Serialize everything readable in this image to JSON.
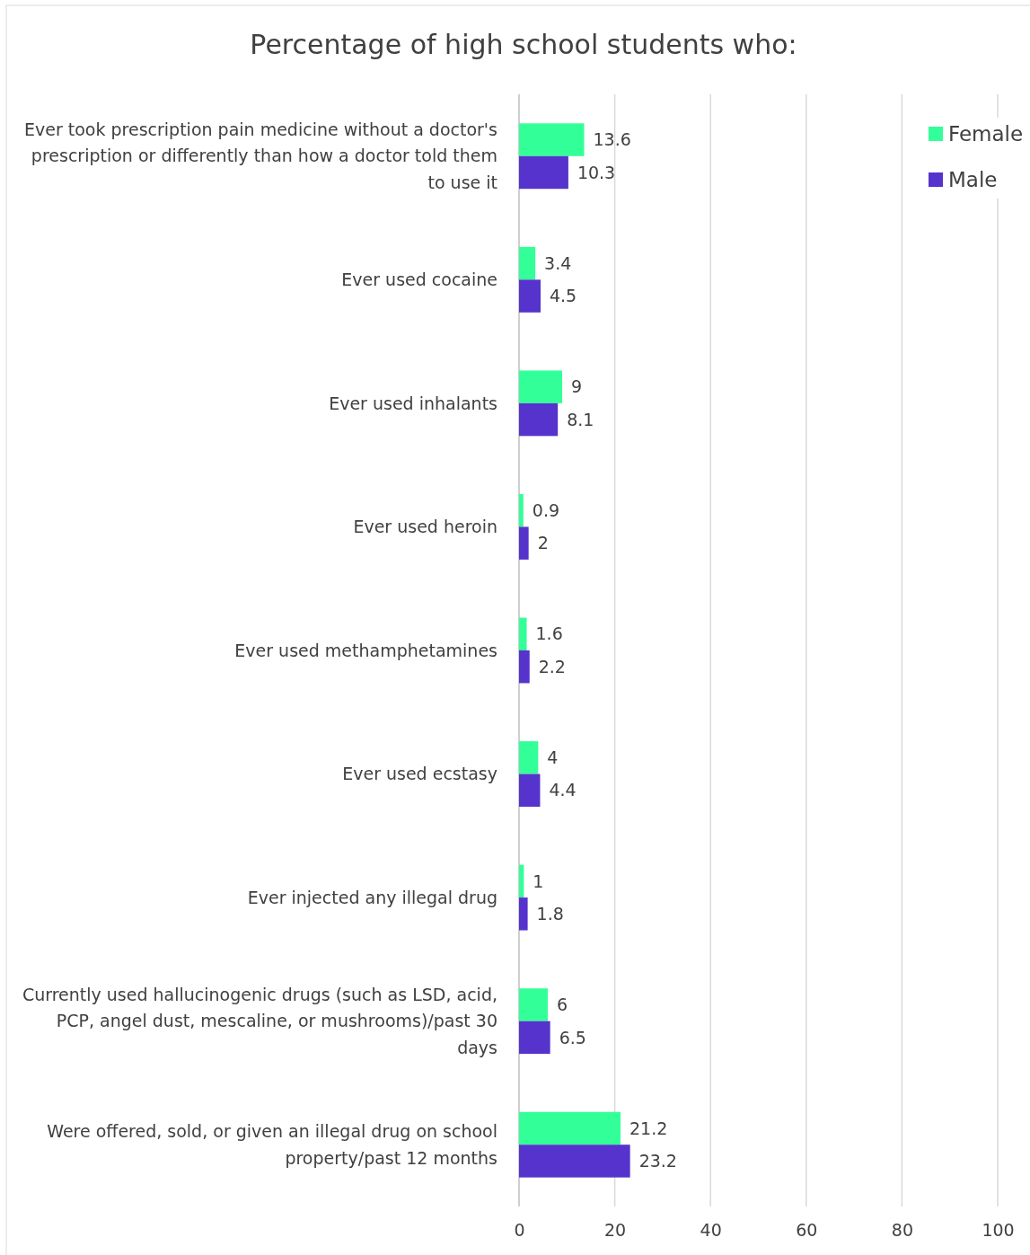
{
  "chart_data": {
    "type": "bar",
    "orientation": "horizontal",
    "title": "Percentage of high school students who:",
    "categories": [
      "Ever took prescription pain medicine without a doctor's prescription or differently than how a doctor told them to use it",
      "Ever used cocaine",
      "Ever used inhalants",
      "Ever used heroin",
      "Ever used methamphetamines",
      "Ever used ecstasy",
      "Ever injected any illegal drug",
      "Currently used hallucinogenic drugs (such as LSD, acid, PCP, angel dust, mescaline, or mushrooms)/past 30 days",
      "Were offered, sold, or given an illegal drug on school property/past 12 months"
    ],
    "series": [
      {
        "name": "Female",
        "color": "#33ff99",
        "values": [
          13.6,
          3.4,
          9,
          0.9,
          1.6,
          4,
          1,
          6,
          21.2
        ]
      },
      {
        "name": "Male",
        "color": "#5533cc",
        "values": [
          10.3,
          4.5,
          8.1,
          2,
          2.2,
          4.4,
          1.8,
          6.5,
          23.2
        ]
      }
    ],
    "xlim": [
      0,
      100
    ],
    "xticks": [
      0,
      20,
      40,
      60,
      80,
      100
    ],
    "grid": "x",
    "legend": "top right",
    "data_labels": true
  }
}
